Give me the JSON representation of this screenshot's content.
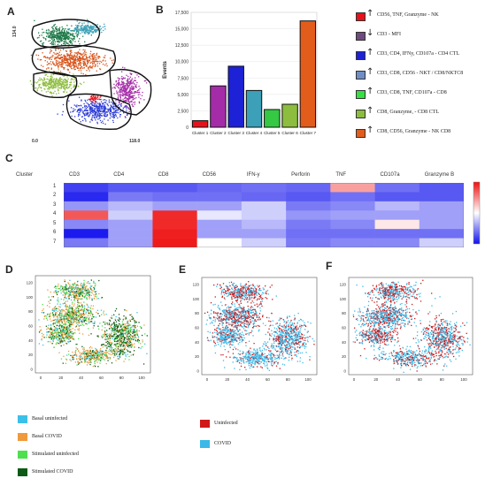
{
  "panels": {
    "A": "A",
    "B": "B",
    "C": "C",
    "D": "D",
    "E": "E",
    "F": "F"
  },
  "panel_a": {
    "y_max_label": "134.0",
    "x_min_label": "0.0",
    "x_max_label": "118.0"
  },
  "chart_data": [
    {
      "type": "bar",
      "panel": "B",
      "categories": [
        "Cluster 1",
        "Cluster 2",
        "Cluster 3",
        "Cluster 4",
        "Cluster 5",
        "Cluster 6",
        "Cluster 7"
      ],
      "values": [
        1000,
        6300,
        9300,
        5600,
        2700,
        3500,
        16200
      ],
      "colors": [
        "#e8111b",
        "#a52ca8",
        "#1d22d6",
        "#3ba0b8",
        "#35c843",
        "#8dbd3e",
        "#e25c1c"
      ],
      "ylabel": "Events",
      "ylim": [
        0,
        17500
      ],
      "yticks": [
        0,
        2500,
        5000,
        7500,
        10000,
        12500,
        15000,
        17500
      ],
      "ytick_labels": [
        "0",
        "2,500",
        "5,000",
        "7,500",
        "10,000",
        "12,500",
        "15,000",
        "17,500"
      ]
    },
    {
      "type": "heatmap",
      "panel": "C",
      "row_header": "Cluster",
      "columns": [
        "CD3",
        "CD4",
        "CD8",
        "CD56",
        "IFN-y",
        "Perforin",
        "TNF",
        "CD107a",
        "Granzyme B"
      ],
      "rows": [
        "1",
        "2",
        "3",
        "4",
        "5",
        "6",
        "7"
      ],
      "values": [
        [
          0.1,
          0.15,
          0.15,
          0.18,
          0.2,
          0.18,
          0.7,
          0.2,
          0.15
        ],
        [
          0.05,
          0.22,
          0.2,
          0.2,
          0.18,
          0.15,
          0.2,
          0.15,
          0.15
        ],
        [
          0.28,
          0.35,
          0.3,
          0.3,
          0.4,
          0.22,
          0.25,
          0.35,
          0.3
        ],
        [
          0.85,
          0.4,
          0.95,
          0.45,
          0.4,
          0.28,
          0.3,
          0.3,
          0.3
        ],
        [
          0.25,
          0.3,
          0.95,
          0.3,
          0.35,
          0.22,
          0.25,
          0.55,
          0.3
        ],
        [
          0.02,
          0.3,
          0.97,
          0.3,
          0.3,
          0.2,
          0.2,
          0.2,
          0.2
        ],
        [
          0.22,
          0.3,
          0.98,
          0.5,
          0.4,
          0.22,
          0.25,
          0.25,
          0.4
        ]
      ]
    },
    {
      "type": "scatter",
      "panel": "D",
      "x_ticks": [
        "0",
        "20",
        "40",
        "60",
        "80",
        "100"
      ],
      "y_ticks": [
        "0",
        "20",
        "40",
        "60",
        "80",
        "100",
        "120"
      ],
      "series": [
        {
          "name": "Basal uninfected",
          "color": "#3cc0e8"
        },
        {
          "name": "Basal COVID",
          "color": "#ef9a3d"
        },
        {
          "name": "Stimulated uninfected",
          "color": "#4ee04e"
        },
        {
          "name": "Stimulated COVID",
          "color": "#0c5a16"
        }
      ]
    },
    {
      "type": "scatter",
      "panel": "E",
      "x_ticks": [
        "0",
        "20",
        "40",
        "60",
        "80",
        "100"
      ],
      "y_ticks": [
        "0",
        "20",
        "40",
        "60",
        "80",
        "100",
        "120"
      ],
      "series": [
        {
          "name": "Uninfected",
          "color": "#d01818"
        },
        {
          "name": "COVID",
          "color": "#3cb8e8"
        }
      ]
    },
    {
      "type": "scatter",
      "panel": "F",
      "x_ticks": [
        "0",
        "20",
        "40",
        "60",
        "80",
        "100"
      ],
      "y_ticks": [
        "0",
        "20",
        "40",
        "60",
        "80",
        "100",
        "120"
      ]
    }
  ],
  "cluster_legend": [
    {
      "arrow": "up",
      "text": "CD56, TNF, Granzyme - NK",
      "color": "#e8111b"
    },
    {
      "arrow": "down",
      "text": "CD3 - MFI",
      "color": "#6e4a7e"
    },
    {
      "arrow": "up",
      "text": "CD3, CD4,  IFNy, CD107a - CD4 CTL",
      "color": "#1d22d6"
    },
    {
      "arrow": "up",
      "text": "CD3, CD8, CD56 - NKT / CD8/NKTC8",
      "color": "#6f8fc4"
    },
    {
      "arrow": "up",
      "text": "CD3, CD8, TNF, CD107a -   CD8",
      "color": "#35e043"
    },
    {
      "arrow": "up",
      "text": "CD8, Granzyme,  - CD8 CTL",
      "color": "#8dbd3e"
    },
    {
      "arrow": "up",
      "text": "CD8, CD56, Granzyme - NK CD8",
      "color": "#e25c1c"
    }
  ]
}
